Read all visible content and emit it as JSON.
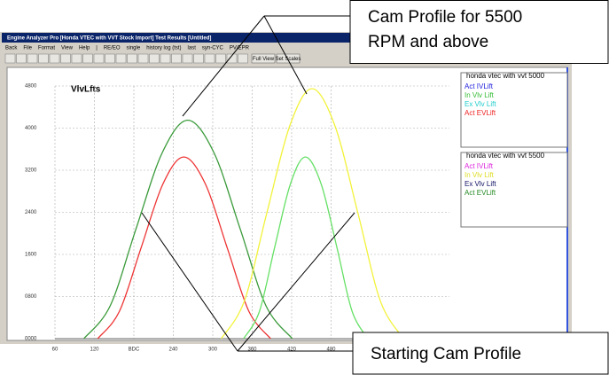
{
  "window": {
    "title": "Engine Analyzer Pro [Honda VTEC with VVT Stock Import]     Test Results [Untitled]",
    "menu": [
      "Back",
      "File",
      "Format",
      "View",
      "Help",
      "|",
      "RE/EO",
      "single",
      "history log (tst)",
      "last",
      "syn-CYC",
      "PV/EPR"
    ],
    "toolbar": [
      "Full View",
      "Set Scales"
    ]
  },
  "chart_data": {
    "type": "line",
    "title": "VlvLfts",
    "xlim": [
      60,
      660
    ],
    "ylim": [
      0,
      4800
    ],
    "xticks": [
      60,
      120,
      {
        "value": 180,
        "label": "BDC"
      },
      240,
      300,
      360,
      420,
      480
    ],
    "yticks": [
      {
        "value": 0,
        "label": "0000"
      },
      {
        "value": 800,
        "label": "0800"
      },
      1600,
      2400,
      3200,
      4000,
      4800
    ],
    "grid": true,
    "series": [
      {
        "color": "#3a9a3a",
        "x": [
          104,
          144,
          183,
          223,
          262,
          302,
          342,
          381,
          421
        ],
        "values": [
          0,
          623,
          2075,
          3528,
          4150,
          3528,
          2075,
          623,
          0
        ]
      },
      {
        "color": "#ee3333",
        "x": [
          125,
          158,
          191,
          224,
          256,
          289,
          322,
          355,
          388
        ],
        "values": [
          0,
          518,
          1725,
          2933,
          3450,
          2933,
          1725,
          518,
          0
        ]
      },
      {
        "color": "#f2f23a",
        "x": [
          313,
          348,
          382,
          417,
          451,
          486,
          521,
          555,
          590
        ],
        "values": [
          0,
          713,
          2375,
          4038,
          4750,
          4038,
          2375,
          713,
          0
        ]
      },
      {
        "color": "#66e066",
        "x": [
          347,
          371,
          394,
          418,
          441,
          465,
          489,
          512,
          536
        ],
        "values": [
          0,
          518,
          1725,
          2933,
          3450,
          2933,
          1725,
          518,
          0
        ]
      }
    ]
  },
  "legend": {
    "groups": [
      {
        "title": "honda vtec with vvt  5000",
        "entries": [
          {
            "name": "Act IVLift",
            "color": "#2222dd"
          },
          {
            "name": "In Vlv Lift",
            "color": "#33bb33"
          },
          {
            "name": "Ex Vlv Lift",
            "color": "#22cccc"
          },
          {
            "name": "Act EVLift",
            "color": "#ee2222"
          }
        ]
      },
      {
        "title": "honda vtec with vvt  5500",
        "entries": [
          {
            "name": "Act IVLift",
            "color": "#dd22dd"
          },
          {
            "name": "In Vlv Lift",
            "color": "#dddd22"
          },
          {
            "name": "Ex Vlv Lift",
            "color": "#111166"
          },
          {
            "name": "Act EVLift",
            "color": "#228822"
          }
        ]
      }
    ]
  },
  "annotations": [
    {
      "lines": [
        "Cam Profile for 5500",
        "RPM and above"
      ]
    },
    {
      "lines": [
        "Starting Cam Profile"
      ]
    }
  ]
}
